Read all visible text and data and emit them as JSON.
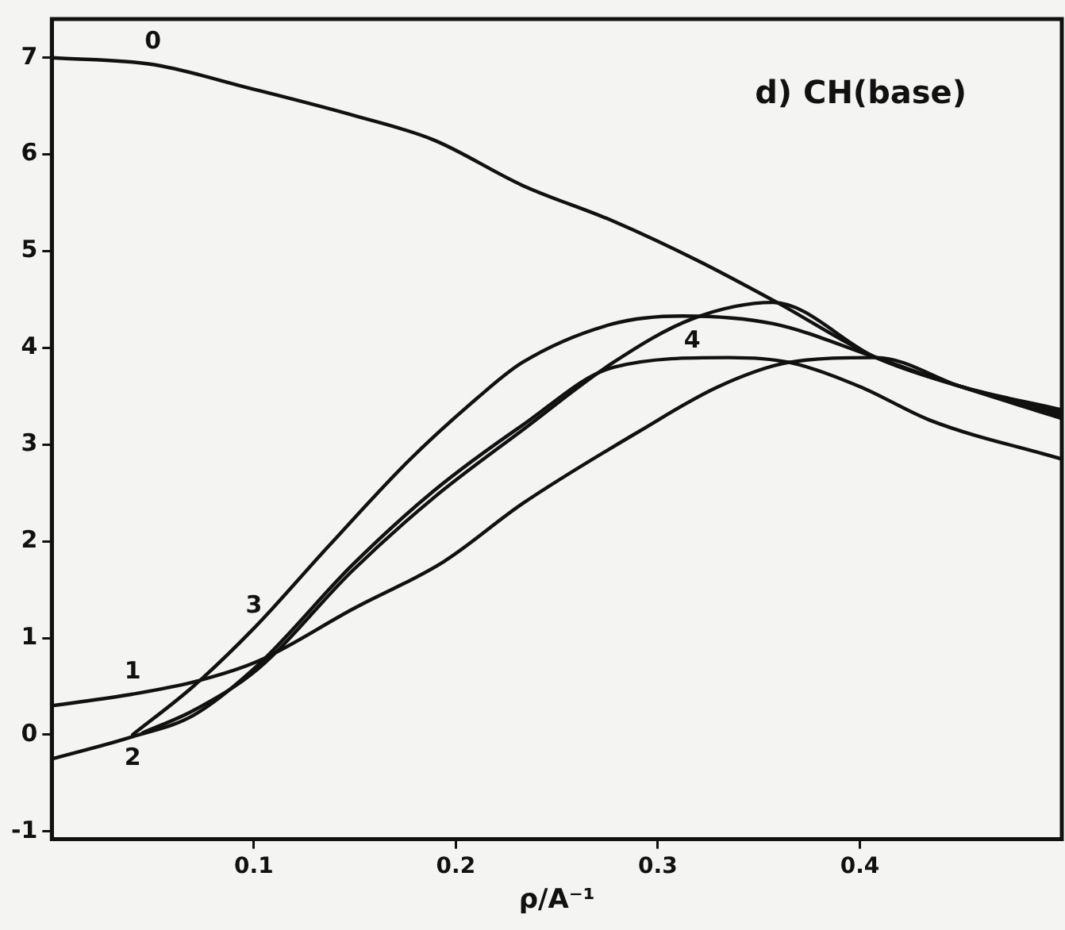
{
  "chart_data": {
    "type": "line",
    "title": "d) CH(base)",
    "xlabel": "ρ/A⁻¹",
    "xlim": [
      0,
      0.5
    ],
    "xticks": [
      0.1,
      0.2,
      0.3,
      0.4
    ],
    "ylim": [
      -1.08,
      7.4
    ],
    "yticks": [
      -1,
      0,
      1,
      2,
      3,
      4,
      5,
      6,
      7
    ],
    "grid": false,
    "legend": false,
    "marker": "none",
    "line_style": "solid",
    "series": [
      {
        "name": "0",
        "color": "#111111",
        "x": [
          0,
          0.05,
          0.097,
          0.15,
          0.189,
          0.233,
          0.278,
          0.32,
          0.359,
          0.408,
          0.45,
          0.5
        ],
        "values": [
          7,
          6.93,
          6.69,
          6.4,
          6.15,
          5.68,
          5.31,
          4.9,
          4.47,
          3.9,
          3.6,
          3.3
        ]
      },
      {
        "name": "1",
        "color": "#111111",
        "x": [
          0,
          0.04,
          0.071,
          0.102,
          0.149,
          0.194,
          0.233,
          0.291,
          0.33,
          0.365,
          0.408,
          0.45,
          0.5
        ],
        "values": [
          0.3,
          0.42,
          0.55,
          0.76,
          1.3,
          1.79,
          2.39,
          3.14,
          3.6,
          3.85,
          3.9,
          3.6,
          3.27
        ]
      },
      {
        "name": "2",
        "color": "#111111",
        "x": [
          0,
          0.04,
          0.07,
          0.102,
          0.149,
          0.189,
          0.233,
          0.278,
          0.335,
          0.365,
          0.4,
          0.435,
          0.5
        ],
        "values": [
          -0.25,
          -0.02,
          0.2,
          0.72,
          1.76,
          2.52,
          3.2,
          3.8,
          3.9,
          3.85,
          3.6,
          3.25,
          2.85
        ]
      },
      {
        "name": "3",
        "color": "#111111",
        "x": [
          0.04,
          0.07,
          0.1,
          0.137,
          0.176,
          0.21,
          0.233,
          0.278,
          0.312,
          0.357,
          0.408,
          0.45,
          0.5
        ],
        "values": [
          0,
          0.5,
          1.1,
          1.95,
          2.82,
          3.47,
          3.85,
          4.25,
          4.33,
          4.25,
          3.9,
          3.6,
          3.33
        ]
      },
      {
        "name": "4",
        "color": "#111111",
        "x": [
          0.045,
          0.07,
          0.102,
          0.149,
          0.189,
          0.233,
          0.278,
          0.317,
          0.357,
          0.408,
          0.45,
          0.5
        ],
        "values": [
          0.02,
          0.25,
          0.68,
          1.7,
          2.45,
          3.15,
          3.85,
          4.3,
          4.47,
          3.9,
          3.6,
          3.36
        ]
      }
    ]
  }
}
